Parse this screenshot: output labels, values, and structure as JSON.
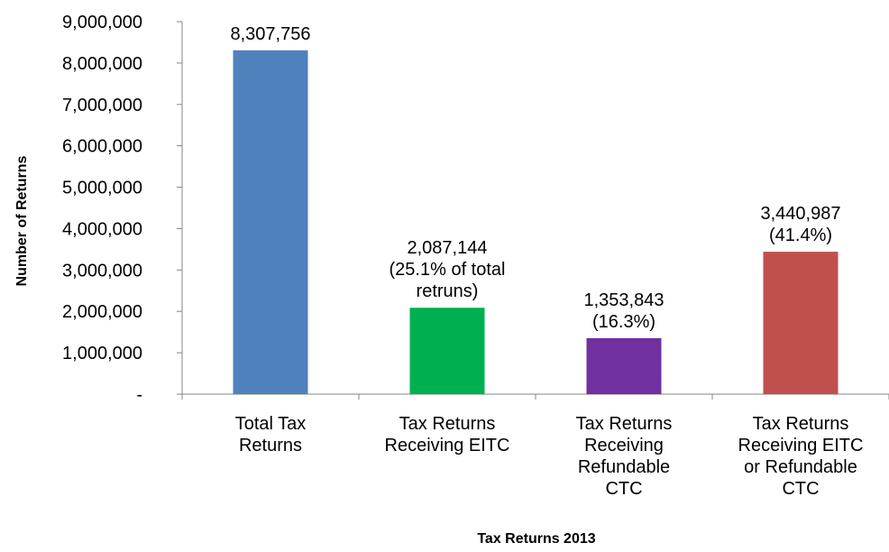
{
  "chart_data": {
    "type": "bar",
    "title": "",
    "xlabel": "Tax Returns 2013",
    "ylabel": "Number of Returns",
    "ylim": [
      0,
      9000000
    ],
    "grid": false,
    "legend": "none",
    "y_ticks": [
      0,
      1000000,
      2000000,
      3000000,
      4000000,
      5000000,
      6000000,
      7000000,
      8000000,
      9000000
    ],
    "y_tick_labels": [
      "-",
      "1,000,000",
      "2,000,000",
      "3,000,000",
      "4,000,000",
      "5,000,000",
      "6,000,000",
      "7,000,000",
      "8,000,000",
      "9,000,000"
    ],
    "categories": [
      [
        "Total Tax",
        "Returns"
      ],
      [
        "Tax Returns",
        "Receiving EITC"
      ],
      [
        "Tax Returns",
        "Receiving",
        "Refundable",
        "CTC"
      ],
      [
        "Tax Returns",
        "Receiving  EITC",
        "or Refundable",
        "CTC"
      ]
    ],
    "values": [
      8307756,
      2087144,
      1353843,
      3440987
    ],
    "data_labels": [
      [
        "8,307,756"
      ],
      [
        "2,087,144",
        "(25.1% of total",
        "retruns)"
      ],
      [
        "1,353,843",
        "(16.3%)"
      ],
      [
        "3,440,987",
        "(41.4%)"
      ]
    ],
    "colors": [
      "#4f81bd",
      "#00b050",
      "#7030a0",
      "#c0504d"
    ]
  }
}
